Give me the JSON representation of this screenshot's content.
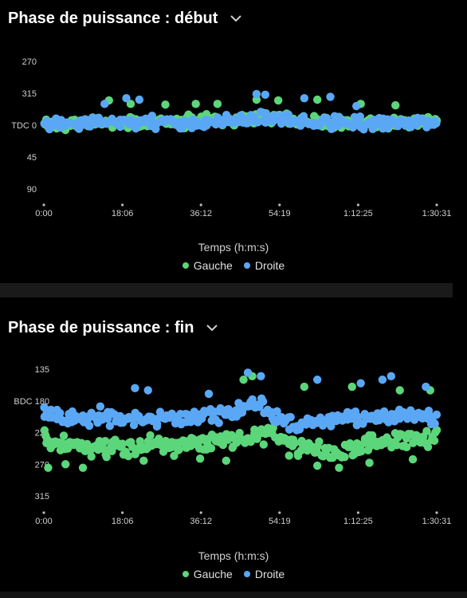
{
  "colors": {
    "left": "#5cd67a",
    "right": "#5aa8f5",
    "background": "#000000"
  },
  "charts": [
    {
      "title": "Phase de puissance : début",
      "dropdown_icon": "chevron-down-icon",
      "xlabel": "Temps (h:m:s)",
      "legend": [
        "Gauche",
        "Droite"
      ],
      "ytick_labels": [
        "270",
        "315",
        "TDC 0",
        "45",
        "90"
      ],
      "xtick_labels": [
        "0:00",
        "18:06",
        "36:12",
        "54:19",
        "1:12:25",
        "1:30:31"
      ]
    },
    {
      "title": "Phase de puissance : fin",
      "dropdown_icon": "chevron-down-icon",
      "xlabel": "Temps (h:m:s)",
      "legend": [
        "Gauche",
        "Droite"
      ],
      "ytick_labels": [
        "135",
        "BDC 180",
        "225",
        "270",
        "315"
      ],
      "xtick_labels": [
        "0:00",
        "18:06",
        "36:12",
        "54:19",
        "1:12:25",
        "1:30:31"
      ]
    }
  ],
  "chart_data": [
    {
      "type": "scatter",
      "title": "Phase de puissance : début",
      "xlabel": "Temps (h:m:s)",
      "x_unit": "minutes",
      "xlim": [
        0,
        90.5
      ],
      "ylim": [
        -90,
        90
      ],
      "y_reversed": true,
      "x_ticks": [
        0,
        18.1,
        36.2,
        54.3,
        72.4,
        90.5
      ],
      "y_ticks": [
        -90,
        -45,
        0,
        45,
        90
      ],
      "series": [
        {
          "name": "Gauche",
          "color": "#5cd67a",
          "trend": [
            [
              0,
              -2
            ],
            [
              10,
              -4
            ],
            [
              20,
              -4
            ],
            [
              30,
              -5
            ],
            [
              36,
              -6
            ],
            [
              42,
              -8
            ],
            [
              48,
              -10
            ],
            [
              54,
              -10
            ],
            [
              60,
              -6
            ],
            [
              66,
              -4
            ],
            [
              72,
              -3
            ],
            [
              80,
              -4
            ],
            [
              90.5,
              -6
            ]
          ],
          "spread": 10,
          "outliers": [
            [
              15,
              -35
            ],
            [
              20,
              -30
            ],
            [
              28,
              -29
            ],
            [
              35,
              -30
            ],
            [
              40,
              -30
            ],
            [
              49,
              -36
            ],
            [
              54,
              -35
            ],
            [
              63,
              -36
            ],
            [
              73,
              -30
            ],
            [
              81,
              -28
            ]
          ]
        },
        {
          "name": "Droite",
          "color": "#5aa8f5",
          "trend": [
            [
              0,
              -2
            ],
            [
              10,
              -3
            ],
            [
              20,
              -4
            ],
            [
              30,
              -4
            ],
            [
              36,
              -4
            ],
            [
              42,
              -6
            ],
            [
              48,
              -10
            ],
            [
              52,
              -12
            ],
            [
              56,
              -6
            ],
            [
              62,
              -3
            ],
            [
              70,
              -3
            ],
            [
              80,
              -3
            ],
            [
              90.5,
              -3
            ]
          ],
          "spread": 10,
          "outliers": [
            [
              14,
              -30
            ],
            [
              19,
              -38
            ],
            [
              22,
              -36
            ],
            [
              49,
              -44
            ],
            [
              51,
              -43
            ],
            [
              60,
              -38
            ],
            [
              66,
              -40
            ],
            [
              72,
              -27
            ]
          ]
        }
      ]
    },
    {
      "type": "scatter",
      "title": "Phase de puissance : fin",
      "xlabel": "Temps (h:m:s)",
      "x_unit": "minutes",
      "xlim": [
        0,
        90.5
      ],
      "ylim": [
        135,
        315
      ],
      "y_reversed": false,
      "x_ticks": [
        0,
        18.1,
        36.2,
        54.3,
        72.4,
        90.5
      ],
      "y_ticks": [
        135,
        180,
        225,
        270,
        315
      ],
      "series": [
        {
          "name": "Gauche",
          "color": "#5cd67a",
          "trend": [
            [
              0,
              235
            ],
            [
              5,
              240
            ],
            [
              10,
              245
            ],
            [
              20,
              245
            ],
            [
              30,
              242
            ],
            [
              40,
              238
            ],
            [
              48,
              230
            ],
            [
              53,
              225
            ],
            [
              56,
              242
            ],
            [
              62,
              245
            ],
            [
              66,
              255
            ],
            [
              70,
              250
            ],
            [
              75,
              240
            ],
            [
              82,
              238
            ],
            [
              90.5,
              230
            ]
          ],
          "spread": 16,
          "outliers": [
            [
              1,
              275
            ],
            [
              5,
              270
            ],
            [
              9,
              275
            ],
            [
              23,
              265
            ],
            [
              30,
              258
            ],
            [
              36,
              262
            ],
            [
              42,
              265
            ],
            [
              63,
              272
            ],
            [
              68,
              275
            ],
            [
              75,
              268
            ],
            [
              85,
              263
            ],
            [
              46,
              150
            ],
            [
              48,
              145
            ],
            [
              60,
              160
            ],
            [
              71,
              160
            ],
            [
              82,
              165
            ],
            [
              89,
              165
            ]
          ]
        },
        {
          "name": "Droite",
          "color": "#5aa8f5",
          "trend": [
            [
              0,
              200
            ],
            [
              10,
              205
            ],
            [
              20,
              208
            ],
            [
              30,
              205
            ],
            [
              40,
              200
            ],
            [
              45,
              192
            ],
            [
              50,
              185
            ],
            [
              53,
              200
            ],
            [
              58,
              215
            ],
            [
              65,
              210
            ],
            [
              70,
              205
            ],
            [
              75,
              205
            ],
            [
              80,
              200
            ],
            [
              90.5,
              205
            ]
          ],
          "spread": 12,
          "outliers": [
            [
              13,
              188
            ],
            [
              21,
              162
            ],
            [
              24,
              165
            ],
            [
              38,
              170
            ],
            [
              47,
              140
            ],
            [
              50,
              145
            ],
            [
              63,
              150
            ],
            [
              73,
              155
            ],
            [
              78,
              150
            ],
            [
              80,
              145
            ],
            [
              88,
              160
            ]
          ]
        }
      ]
    }
  ]
}
